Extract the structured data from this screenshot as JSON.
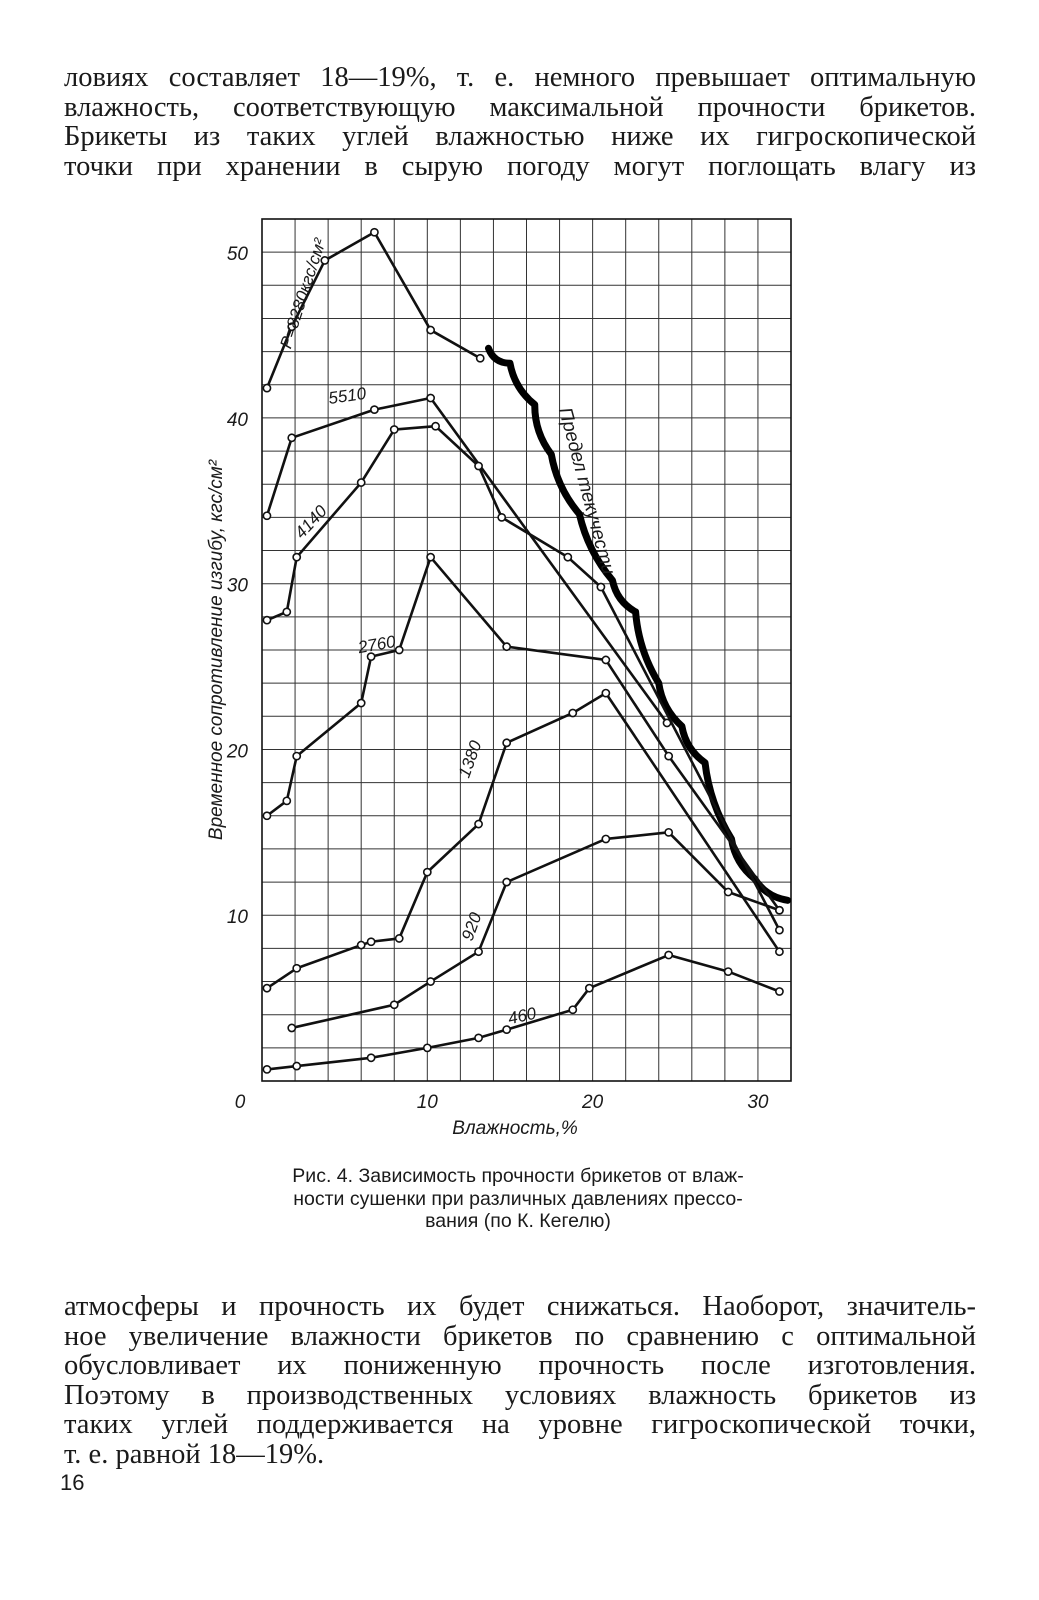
{
  "text_top": [
    "ловиях составляет 18—19%, т. е. немного превышает оптимальную",
    "влажность, соответствующую максимальной прочности брикетов.",
    "Брикеты из таких углей влажностью ниже их гигроскопической",
    "точки при хранении в сырую погоду могут поглощать влагу из"
  ],
  "caption": [
    "Рис. 4. Зависимость прочности брикетов от влаж-",
    "ности сушенки при различных давлениях прессо-",
    "вания (по К. Кегелю)"
  ],
  "text_bottom": [
    "атмосферы и прочность их будет снижаться. Наоборот, значитель-",
    "ное увеличение влажности брикетов по сравнению с оптимальной",
    "обусловливает их пониженную прочность после изготовления.",
    "Поэтому в производственных условиях влажность брикетов из",
    "таких углей поддерживается на уровне гигроскопической точки,",
    "т. е. равной 18—19%."
  ],
  "page_number": "16",
  "chart_data": {
    "type": "line",
    "xlabel": "Влажность,%",
    "ylabel": "Временное сопротивление изгибу, кгс/см²",
    "xlim": [
      0,
      32
    ],
    "ylim": [
      0,
      52
    ],
    "x_ticks": [
      "0",
      "10",
      "20",
      "30"
    ],
    "y_ticks": [
      "10",
      "20",
      "30",
      "40",
      "50"
    ],
    "grid": true,
    "series": [
      {
        "name": "P=8280кгс/см²",
        "label": "P=8280кгс/см²",
        "points": [
          [
            0.3,
            41.8
          ],
          [
            1.8,
            45.5
          ],
          [
            3.8,
            49.5
          ],
          [
            6.8,
            51.2
          ],
          [
            10.2,
            45.3
          ],
          [
            13.2,
            43.6
          ]
        ]
      },
      {
        "name": "5510",
        "label": "5510",
        "points": [
          [
            0.3,
            34.1
          ],
          [
            1.8,
            38.8
          ],
          [
            6.8,
            40.5
          ],
          [
            10.2,
            41.2
          ],
          [
            24.5,
            21.6
          ]
        ]
      },
      {
        "name": "4140",
        "label": "4140",
        "points": [
          [
            0.3,
            27.8
          ],
          [
            1.5,
            28.3
          ],
          [
            2.1,
            31.6
          ],
          [
            6.0,
            36.1
          ],
          [
            8.0,
            39.3
          ],
          [
            10.5,
            39.5
          ],
          [
            13.1,
            37.1
          ],
          [
            14.5,
            34.0
          ],
          [
            18.5,
            31.6
          ],
          [
            20.5,
            29.8
          ],
          [
            31.3,
            9.1
          ]
        ]
      },
      {
        "name": "2760",
        "label": "2760",
        "points": [
          [
            0.3,
            16.0
          ],
          [
            1.5,
            16.9
          ],
          [
            2.1,
            19.6
          ],
          [
            6.0,
            22.8
          ],
          [
            6.6,
            25.6
          ],
          [
            8.3,
            26.0
          ],
          [
            10.2,
            31.6
          ],
          [
            14.8,
            26.2
          ],
          [
            20.8,
            25.4
          ],
          [
            24.6,
            19.6
          ],
          [
            31.3,
            10.3
          ]
        ]
      },
      {
        "name": "1380",
        "label": "1380",
        "points": [
          [
            0.3,
            5.6
          ],
          [
            2.1,
            6.8
          ],
          [
            6.0,
            8.2
          ],
          [
            6.6,
            8.4
          ],
          [
            8.3,
            8.6
          ],
          [
            10.0,
            12.6
          ],
          [
            13.1,
            15.5
          ],
          [
            14.8,
            20.4
          ],
          [
            18.8,
            22.2
          ],
          [
            20.8,
            23.4
          ],
          [
            31.3,
            7.8
          ]
        ]
      },
      {
        "name": "920",
        "label": "920",
        "points": [
          [
            1.8,
            3.2
          ],
          [
            8.0,
            4.6
          ],
          [
            10.2,
            6.0
          ],
          [
            13.1,
            7.8
          ],
          [
            14.8,
            12.0
          ],
          [
            20.8,
            14.6
          ],
          [
            24.6,
            15.0
          ],
          [
            28.2,
            11.4
          ],
          [
            31.3,
            10.3
          ]
        ]
      },
      {
        "name": "460",
        "label": "460",
        "points": [
          [
            0.3,
            0.7
          ],
          [
            2.1,
            0.9
          ],
          [
            6.6,
            1.4
          ],
          [
            10.0,
            2.0
          ],
          [
            13.1,
            2.6
          ],
          [
            14.8,
            3.1
          ],
          [
            18.8,
            4.3
          ],
          [
            19.8,
            5.6
          ],
          [
            24.6,
            7.6
          ],
          [
            28.2,
            6.6
          ],
          [
            31.3,
            5.4
          ]
        ]
      }
    ],
    "annotations": [
      {
        "text": "Предел текучести",
        "type": "wavy-boundary",
        "points": [
          [
            13.7,
            44.2
          ],
          [
            15.0,
            43.3
          ],
          [
            16.5,
            40.8
          ],
          [
            17.5,
            37.8
          ],
          [
            19.2,
            34.2
          ],
          [
            21.2,
            30.2
          ],
          [
            22.6,
            28.3
          ],
          [
            24.0,
            24.0
          ],
          [
            25.4,
            21.4
          ],
          [
            26.8,
            19.2
          ],
          [
            28.4,
            14.6
          ],
          [
            29.8,
            12.2
          ],
          [
            31.8,
            10.9
          ]
        ]
      }
    ]
  }
}
